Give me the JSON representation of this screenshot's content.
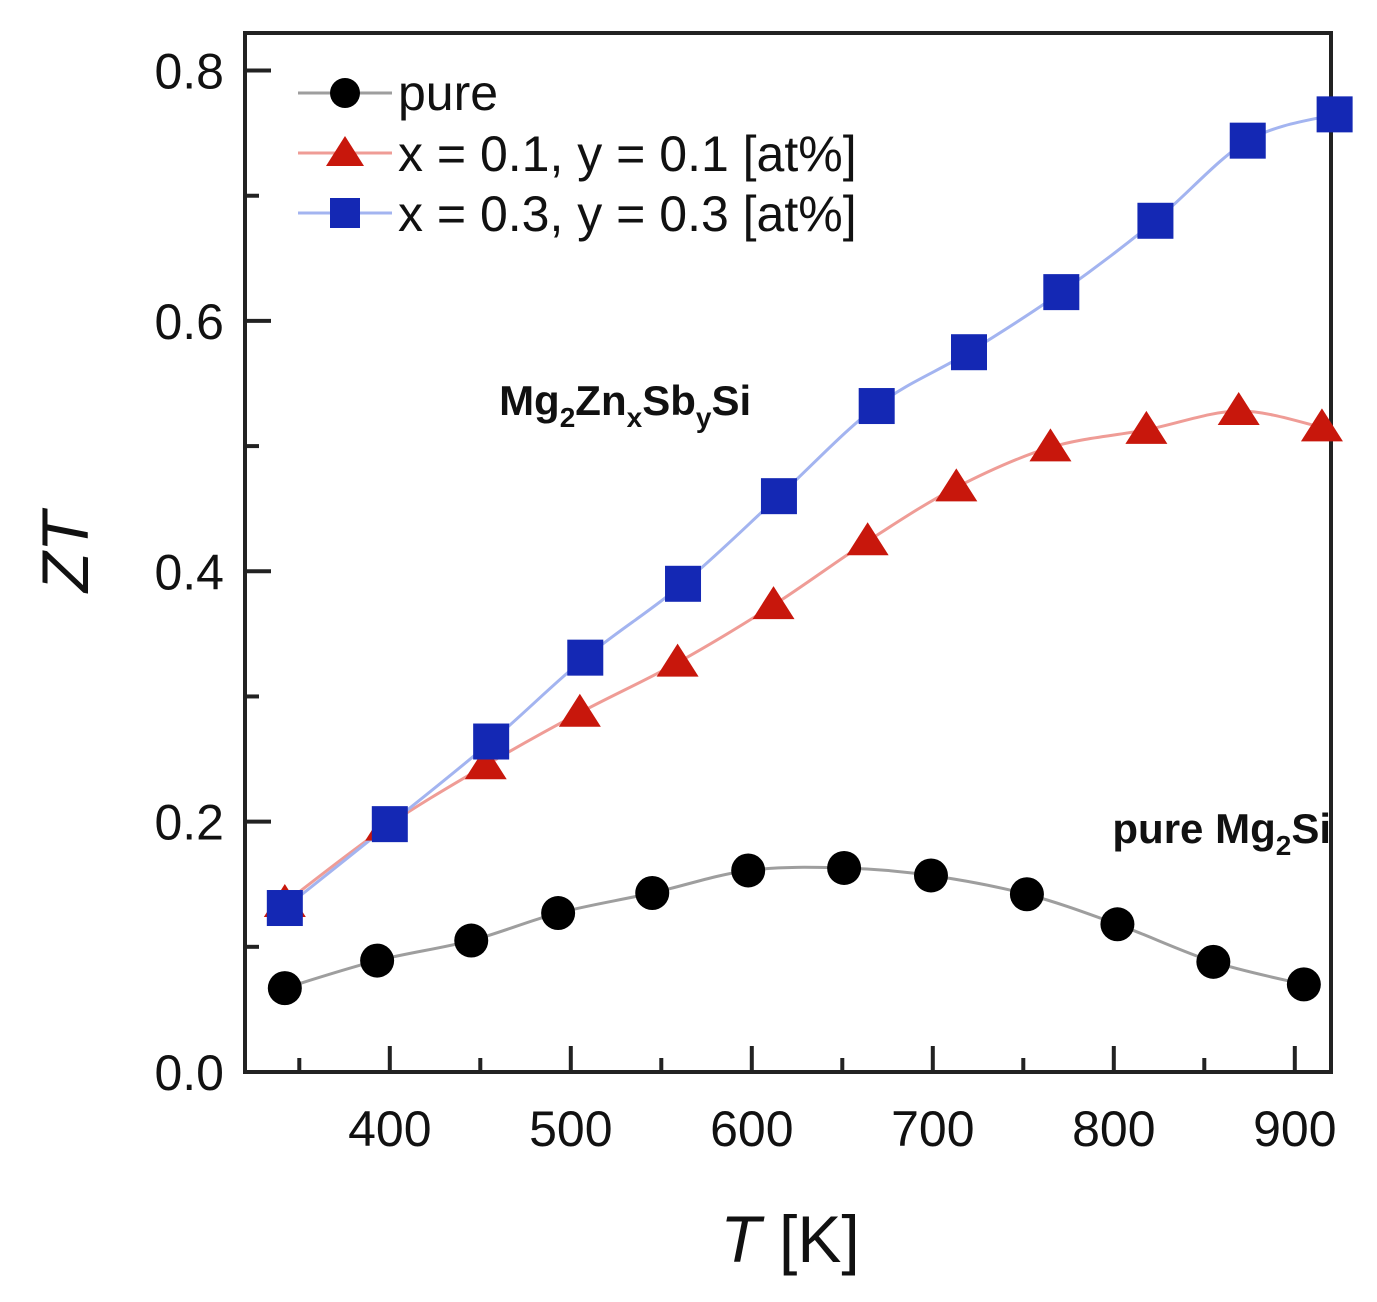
{
  "chart_data": {
    "type": "line",
    "xlim": [
      320,
      920
    ],
    "ylim": [
      0.0,
      0.83
    ],
    "x_ticks_major": [
      400,
      500,
      600,
      700,
      800,
      900
    ],
    "x_ticks_minor": [
      350,
      450,
      550,
      650,
      750,
      850
    ],
    "y_ticks_major": [
      0.0,
      0.2,
      0.4,
      0.6,
      0.8
    ],
    "y_ticks_minor": [
      0.1,
      0.3,
      0.5,
      0.7
    ],
    "x_tick_labels": [
      "400",
      "500",
      "600",
      "700",
      "800",
      "900"
    ],
    "y_tick_labels": [
      "0.0",
      "0.2",
      "0.4",
      "0.6",
      "0.8"
    ],
    "xlabel": {
      "italic": "T",
      "rest": " [K]"
    },
    "ylabel": "ZT",
    "legend_position": "top-left",
    "series": [
      {
        "name": "pure",
        "marker": "circle",
        "marker_color": "#000000",
        "line_color": "#9e9e9e",
        "x": [
          342,
          393,
          445,
          493,
          545,
          598,
          651,
          699,
          752,
          802,
          855,
          905
        ],
        "y": [
          0.067,
          0.089,
          0.105,
          0.127,
          0.143,
          0.161,
          0.163,
          0.157,
          0.142,
          0.118,
          0.088,
          0.07
        ]
      },
      {
        "name": "x = 0.1, y = 0.1 [at%]",
        "marker": "triangle",
        "marker_color": "#c8170c",
        "line_color": "#ef9c96",
        "x": [
          342,
          398,
          453,
          505,
          559,
          612,
          664,
          713,
          765,
          818,
          869,
          915
        ],
        "y": [
          0.135,
          0.196,
          0.245,
          0.287,
          0.327,
          0.373,
          0.424,
          0.467,
          0.499,
          0.513,
          0.528,
          0.515
        ]
      },
      {
        "name": "x = 0.3, y = 0.3 [at%]",
        "marker": "square",
        "marker_color": "#1428b4",
        "line_color": "#a3b4f0",
        "x": [
          342,
          400,
          456,
          508,
          562,
          615,
          669,
          720,
          771,
          823,
          874,
          922
        ],
        "y": [
          0.131,
          0.198,
          0.264,
          0.331,
          0.39,
          0.46,
          0.532,
          0.575,
          0.623,
          0.68,
          0.744,
          0.765
        ]
      }
    ],
    "annotations": [
      {
        "name": "formula",
        "base": "Mg",
        "sub1": "2",
        "mid1": "Zn",
        "sub2": "x",
        "mid2": "Sb",
        "sub3": "y",
        "tail": "Si",
        "at_x": 530,
        "at_y": 0.525
      },
      {
        "name": "pure-label",
        "base": "pure Mg",
        "sub1": "2",
        "tail": "Si",
        "at_x": 920,
        "at_y": 0.183
      }
    ]
  }
}
